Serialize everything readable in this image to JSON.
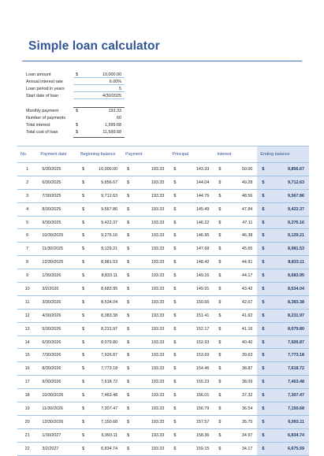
{
  "title": "Simple loan calculator",
  "inputs": [
    {
      "label": "Loan amount",
      "cur": "$",
      "value": "10,000.00"
    },
    {
      "label": "Annual interest rate",
      "cur": "",
      "value": "6.00%"
    },
    {
      "label": "Loan period in years",
      "cur": "",
      "value": "5"
    },
    {
      "label": "Start date of loan",
      "cur": "",
      "value": "4/30/2025"
    }
  ],
  "summary": [
    {
      "label": "Monthly payment",
      "cur": "$",
      "value": "193.33"
    },
    {
      "label": "Number of payments",
      "cur": "",
      "value": "60"
    },
    {
      "label": "Total interest",
      "cur": "$",
      "value": "1,599.68"
    },
    {
      "label": "Total cost of loan",
      "cur": "$",
      "value": "11,599.68"
    }
  ],
  "table": {
    "headers": [
      "No.",
      "Payment date",
      "Beginning balance",
      "Payment",
      "Principal",
      "Interest",
      "Ending balance"
    ],
    "currency": "$",
    "rows": [
      [
        "1",
        "5/30/2025",
        "10,000.00",
        "193.33",
        "143.33",
        "50.00",
        "9,856.67"
      ],
      [
        "2",
        "6/30/2025",
        "9,856.67",
        "193.33",
        "144.04",
        "49.28",
        "9,712.63"
      ],
      [
        "3",
        "7/30/2025",
        "9,712.63",
        "193.33",
        "144.76",
        "48.56",
        "9,567.86"
      ],
      [
        "4",
        "8/30/2025",
        "9,567.86",
        "193.33",
        "145.49",
        "47.84",
        "9,422.37"
      ],
      [
        "5",
        "9/30/2025",
        "9,422.37",
        "193.33",
        "146.22",
        "47.11",
        "9,276.16"
      ],
      [
        "6",
        "10/30/2025",
        "9,276.16",
        "193.33",
        "146.95",
        "46.38",
        "9,129.21"
      ],
      [
        "7",
        "11/30/2025",
        "9,129.21",
        "193.33",
        "147.68",
        "45.65",
        "8,981.53"
      ],
      [
        "8",
        "12/30/2025",
        "8,981.53",
        "193.33",
        "148.42",
        "44.91",
        "8,833.11"
      ],
      [
        "9",
        "1/30/2026",
        "8,833.11",
        "193.33",
        "149.16",
        "44.17",
        "8,683.95"
      ],
      [
        "10",
        "3/2/2026",
        "8,683.95",
        "193.33",
        "149.91",
        "43.42",
        "8,534.04"
      ],
      [
        "11",
        "3/30/2026",
        "8,534.04",
        "193.33",
        "150.66",
        "42.67",
        "8,383.38"
      ],
      [
        "12",
        "4/30/2026",
        "8,383.38",
        "193.33",
        "151.41",
        "41.92",
        "8,231.97"
      ],
      [
        "13",
        "5/30/2026",
        "8,231.97",
        "193.33",
        "152.17",
        "41.16",
        "8,079.80"
      ],
      [
        "14",
        "6/30/2026",
        "8,079.80",
        "193.33",
        "152.93",
        "40.40",
        "7,926.87"
      ],
      [
        "15",
        "7/30/2026",
        "7,926.87",
        "193.33",
        "153.69",
        "39.63",
        "7,773.18"
      ],
      [
        "16",
        "8/30/2026",
        "7,773.18",
        "193.33",
        "154.46",
        "38.87",
        "7,618.72"
      ],
      [
        "17",
        "9/30/2026",
        "7,618.72",
        "193.33",
        "155.23",
        "38.09",
        "7,463.48"
      ],
      [
        "18",
        "10/30/2026",
        "7,463.48",
        "193.33",
        "156.01",
        "37.32",
        "7,307.47"
      ],
      [
        "19",
        "11/30/2026",
        "7,307.47",
        "193.33",
        "156.79",
        "36.54",
        "7,150.68"
      ],
      [
        "20",
        "12/30/2026",
        "7,150.68",
        "193.33",
        "157.57",
        "35.75",
        "6,993.11"
      ],
      [
        "21",
        "1/30/2027",
        "6,993.11",
        "193.33",
        "158.36",
        "34.97",
        "6,834.74"
      ],
      [
        "22",
        "3/2/2027",
        "6,834.74",
        "193.33",
        "159.15",
        "34.17",
        "6,675.59"
      ]
    ]
  }
}
